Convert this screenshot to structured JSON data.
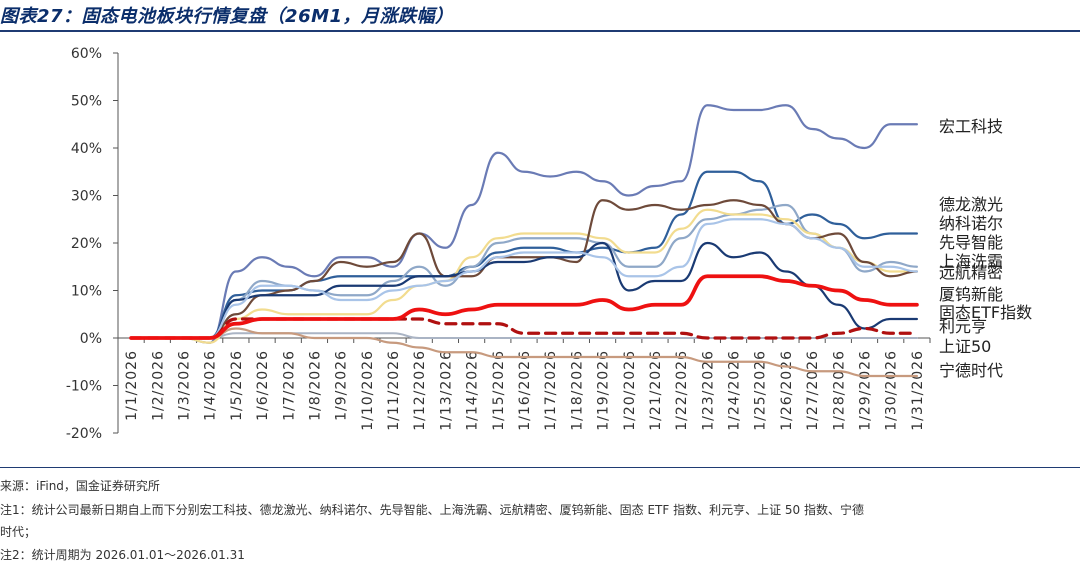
{
  "title": "图表27：固态电池板块行情复盘（26M1，月涨跌幅）",
  "notes": {
    "source": "来源：iFind，国金证券研究所",
    "note1_line1": "注1：统计公司最新日期自上而下分别宏工科技、德龙激光、纳科诺尔、先导智能、上海洗霸、远航精密、厦钨新能、固态 ETF 指数、利元亨、上证 50 指数、宁德",
    "note1_line2": "时代；",
    "note2": "注2：统计周期为 2026.01.01～2026.01.31"
  },
  "chart_data": {
    "type": "line",
    "title": "固态电池板块行情复盘（26M1，月涨跌幅）",
    "xlabel": "",
    "ylabel": "",
    "ylim": [
      -20,
      60
    ],
    "yticks": [
      "-20%",
      "-10%",
      "0%",
      "10%",
      "20%",
      "30%",
      "40%",
      "50%",
      "60%"
    ],
    "x": [
      "1/1/2026",
      "1/2/2026",
      "1/3/2026",
      "1/4/2026",
      "1/5/2026",
      "1/6/2026",
      "1/7/2026",
      "1/8/2026",
      "1/9/2026",
      "1/10/2026",
      "1/11/2026",
      "1/12/2026",
      "1/13/2026",
      "1/14/2026",
      "1/15/2026",
      "1/16/2026",
      "1/17/2026",
      "1/18/2026",
      "1/19/2026",
      "1/20/2026",
      "1/21/2026",
      "1/22/2026",
      "1/23/2026",
      "1/24/2026",
      "1/25/2026",
      "1/26/2026",
      "1/27/2026",
      "1/28/2026",
      "1/29/2026",
      "1/30/2026",
      "1/31/2026"
    ],
    "series": [
      {
        "name": "宏工科技",
        "color": "#6a7bb5",
        "width": 2.2,
        "dash": "",
        "values": [
          0,
          0,
          0,
          -1,
          14,
          17,
          15,
          13,
          17,
          17,
          15,
          22,
          19,
          28,
          39,
          35,
          34,
          35,
          33,
          30,
          32,
          33,
          49,
          48,
          48,
          49,
          44,
          42,
          40,
          45,
          45
        ]
      },
      {
        "name": "德龙激光",
        "color": "#2f5f9a",
        "width": 2.2,
        "dash": "",
        "values": [
          0,
          0,
          0,
          0,
          9,
          10,
          10,
          12,
          13,
          13,
          13,
          13,
          13,
          15,
          18,
          19,
          19,
          18,
          19,
          18,
          19,
          26,
          35,
          35,
          33,
          24,
          26,
          24,
          21,
          22,
          22
        ]
      },
      {
        "name": "纳科诺尔",
        "color": "#8fa8c8",
        "width": 2.2,
        "dash": "",
        "values": [
          0,
          0,
          0,
          0,
          8,
          12,
          11,
          10,
          9,
          9,
          12,
          15,
          11,
          15,
          20,
          21,
          21,
          21,
          20,
          15,
          15,
          21,
          25,
          26,
          27,
          28,
          22,
          19,
          14,
          16,
          15
        ]
      },
      {
        "name": "先导智能",
        "color": "#f2dc8f",
        "width": 2.2,
        "dash": "",
        "values": [
          0,
          0,
          0,
          -1,
          4,
          6,
          5,
          5,
          5,
          5,
          8,
          11,
          12,
          17,
          21,
          22,
          22,
          22,
          21,
          18,
          18,
          23,
          27,
          26,
          26,
          25,
          22,
          19,
          16,
          14,
          14
        ]
      },
      {
        "name": "上海洗霸",
        "color": "#6e4a3a",
        "width": 2.2,
        "dash": "",
        "values": [
          0,
          0,
          0,
          0,
          5,
          9,
          10,
          12,
          16,
          15,
          16,
          22,
          13,
          13,
          17,
          17,
          17,
          16,
          29,
          27,
          28,
          27,
          28,
          29,
          28,
          24,
          21,
          22,
          16,
          13,
          14
        ]
      },
      {
        "name": "远航精密",
        "color": "#1a3a73",
        "width": 2.2,
        "dash": "",
        "values": [
          0,
          0,
          0,
          0,
          8,
          9,
          9,
          9,
          11,
          11,
          11,
          13,
          13,
          14,
          16,
          16,
          17,
          17,
          20,
          10,
          12,
          12,
          20,
          17,
          18,
          14,
          11,
          7,
          2,
          4,
          4
        ]
      },
      {
        "name": "厦钨新能",
        "color": "#a9c4e8",
        "width": 2.2,
        "dash": "",
        "values": [
          0,
          0,
          0,
          0,
          7,
          11,
          11,
          10,
          8,
          8,
          10,
          11,
          12,
          14,
          17,
          18,
          18,
          18,
          17,
          13,
          13,
          15,
          24,
          25,
          25,
          24,
          21,
          19,
          15,
          15,
          14
        ]
      },
      {
        "name": "固态ETF指数",
        "color": "#ee1111",
        "width": 3.8,
        "dash": "",
        "values": [
          0,
          0,
          0,
          0,
          3,
          4,
          4,
          4,
          4,
          4,
          4,
          6,
          5,
          6,
          7,
          7,
          7,
          7,
          8,
          6,
          7,
          7,
          13,
          13,
          13,
          12,
          11,
          10,
          8,
          7,
          7
        ]
      },
      {
        "name": "利元亨",
        "color": "#b01010",
        "width": 3.2,
        "dash": "10 7",
        "values": [
          0,
          0,
          0,
          0,
          4,
          4,
          4,
          4,
          4,
          4,
          4,
          4,
          3,
          3,
          3,
          1,
          1,
          1,
          1,
          1,
          1,
          1,
          0,
          0,
          0,
          0,
          0,
          1,
          2,
          1,
          1
        ]
      },
      {
        "name": "上证50",
        "color": "#aab4c4",
        "width": 2,
        "dash": "",
        "values": [
          0,
          0,
          0,
          0,
          1,
          1,
          1,
          1,
          1,
          1,
          1,
          0,
          0,
          0,
          0,
          0,
          0,
          0,
          0,
          0,
          0,
          0,
          0,
          0,
          0,
          0,
          0,
          0,
          0,
          0,
          0
        ]
      },
      {
        "name": "宁德时代",
        "color": "#c79a7e",
        "width": 2.2,
        "dash": "",
        "values": [
          0,
          0,
          0,
          0,
          2,
          1,
          1,
          0,
          0,
          0,
          -1,
          -2,
          -3,
          -3,
          -4,
          -4,
          -4,
          -4,
          -4,
          -4,
          -4,
          -4,
          -5,
          -5,
          -5,
          -6,
          -7,
          -7,
          -8,
          -8,
          -8
        ]
      }
    ]
  }
}
